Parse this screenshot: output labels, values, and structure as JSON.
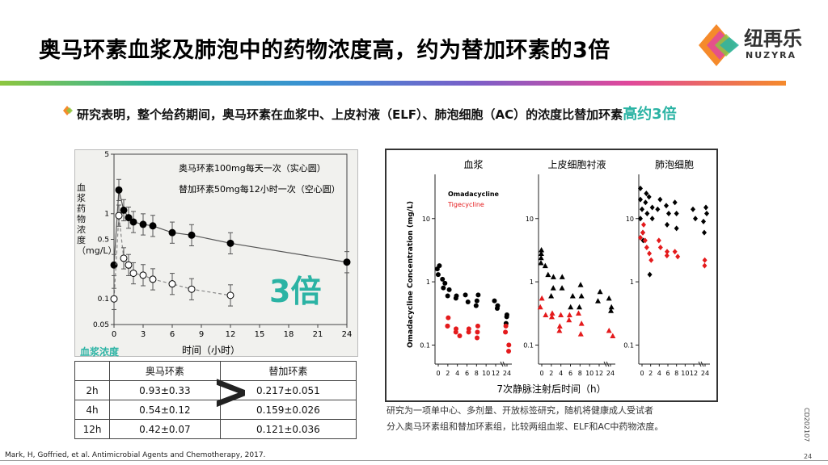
{
  "title": "奥马环素血浆及肺泡中的药物浓度高，约为替加环素的3倍",
  "logo": {
    "cn": "纽再乐",
    "en": "NUZYRA"
  },
  "statement": {
    "text": "研究表明，整个给药期间，奥马环素在血浆中、上皮衬液（ELF）、肺泡细胞（AC）的浓度比替加环素",
    "highlight": "高约3倍"
  },
  "left_chart": {
    "legend_solid": "奥马环素100mg每天一次（实心圆）",
    "legend_open": "替加环素50mg每12小时一次（空心圆）",
    "ylabel": "血浆药物浓度（mg/L）",
    "xlabel": "时间（小时）",
    "caption": "血浆浓度",
    "big_label": "3倍",
    "xticks": [
      "0",
      "3",
      "6",
      "9",
      "12",
      "15",
      "18",
      "21",
      "24"
    ],
    "yticks": [
      "5",
      "1",
      "0.5",
      "0.1",
      "0.05"
    ]
  },
  "table": {
    "headers": [
      "",
      "奥马环素",
      "替加环素"
    ],
    "rows": [
      [
        "2h",
        "0.93±0.33",
        "0.217±0.051"
      ],
      [
        "4h",
        "0.54±0.12",
        "0.159±0.026"
      ],
      [
        "12h",
        "0.42±0.07",
        "0.121±0.036"
      ]
    ],
    "symbol": ">"
  },
  "right_chart": {
    "panels": [
      "血浆",
      "上皮细胞衬液",
      "肺泡细胞"
    ],
    "ylabel": "Omadacycline Concentration (mg/L)",
    "legend": [
      "Omadacycline",
      "Tigecycline"
    ],
    "xlabel": "7次静脉注射后时间（h）",
    "xticks": [
      "0",
      "2",
      "4",
      "6",
      "8",
      "10",
      "12",
      "24"
    ],
    "yticks": [
      "10",
      "1",
      "0.1"
    ]
  },
  "chart_data": [
    {
      "type": "line",
      "x": [
        0,
        0.5,
        1,
        1.5,
        2,
        3,
        4,
        6,
        8,
        12,
        24
      ],
      "series": [
        {
          "name": "奥马环素100mg每天一次（实心圆）",
          "values": [
            0.25,
            1.9,
            1.1,
            0.9,
            0.8,
            0.75,
            0.72,
            0.6,
            0.56,
            0.45,
            0.27
          ]
        },
        {
          "name": "替加环素50mg每12小时一次（空心圆）",
          "values": [
            0.1,
            0.95,
            0.3,
            0.25,
            0.2,
            0.19,
            0.17,
            0.15,
            0.13,
            0.11,
            null
          ]
        }
      ],
      "ylim": [
        0.05,
        5
      ],
      "xlim": [
        0,
        24
      ],
      "ylog": true,
      "xlabel": "时间（小时）",
      "ylabel": "血浆药物浓度（mg/L）"
    },
    {
      "type": "scatter",
      "ylog": true,
      "ylim": [
        0.05,
        50
      ],
      "panels": [
        {
          "name": "血浆",
          "omadacycline": [
            [
              0,
              1.8
            ],
            [
              0,
              1.6
            ],
            [
              0,
              1.3
            ],
            [
              1,
              1.1
            ],
            [
              1,
              0.95
            ],
            [
              1,
              0.8
            ],
            [
              2,
              0.75
            ],
            [
              2,
              0.6
            ],
            [
              4,
              0.6
            ],
            [
              4,
              0.55
            ],
            [
              6,
              0.62
            ],
            [
              6,
              0.48
            ],
            [
              8,
              0.62
            ],
            [
              8,
              0.5
            ],
            [
              8,
              0.42
            ],
            [
              12,
              0.5
            ],
            [
              12,
              0.42
            ],
            [
              12,
              0.38
            ],
            [
              24,
              0.3
            ],
            [
              24,
              0.28
            ],
            [
              24,
              0.22
            ]
          ],
          "tigecycline": [
            [
              2,
              0.27
            ],
            [
              2,
              0.2
            ],
            [
              2,
              0.2
            ],
            [
              4,
              0.18
            ],
            [
              4,
              0.16
            ],
            [
              4,
              0.14
            ],
            [
              6,
              0.18
            ],
            [
              6,
              0.16
            ],
            [
              8,
              0.2
            ],
            [
              8,
              0.16
            ],
            [
              8,
              0.13
            ],
            [
              24,
              0.2
            ],
            [
              24,
              0.16
            ],
            [
              24,
              0.1
            ],
            [
              24,
              0.08
            ]
          ]
        },
        {
          "name": "上皮细胞衬液",
          "omadacycline": [
            [
              0,
              3.2
            ],
            [
              0,
              2.8
            ],
            [
              0,
              2.4
            ],
            [
              0,
              2
            ],
            [
              1,
              1.8
            ],
            [
              1,
              1.3
            ],
            [
              2,
              1.2
            ],
            [
              2,
              0.8
            ],
            [
              2,
              0.6
            ],
            [
              4,
              1.2
            ],
            [
              4,
              0.8
            ],
            [
              6,
              0.6
            ],
            [
              6,
              0.4
            ],
            [
              8,
              0.9
            ],
            [
              8,
              0.6
            ],
            [
              8,
              0.4
            ],
            [
              12,
              0.7
            ],
            [
              12,
              0.5
            ],
            [
              24,
              0.55
            ],
            [
              24,
              0.4
            ],
            [
              24,
              0.35
            ]
          ],
          "tigecycline": [
            [
              0,
              0.55
            ],
            [
              0,
              0.4
            ],
            [
              1,
              0.3
            ],
            [
              2,
              0.32
            ],
            [
              2,
              0.28
            ],
            [
              4,
              0.3
            ],
            [
              4,
              0.2
            ],
            [
              4,
              0.17
            ],
            [
              6,
              0.3
            ],
            [
              6,
              0.25
            ],
            [
              8,
              0.32
            ],
            [
              8,
              0.22
            ],
            [
              8,
              0.15
            ],
            [
              24,
              0.17
            ],
            [
              24,
              0.14
            ]
          ]
        },
        {
          "name": "肺泡细胞",
          "omadacycline": [
            [
              0,
              30
            ],
            [
              0,
              20
            ],
            [
              0,
              14
            ],
            [
              0,
              10
            ],
            [
              0,
              6
            ],
            [
              0,
              4.5
            ],
            [
              1,
              25
            ],
            [
              1,
              18
            ],
            [
              1,
              12
            ],
            [
              2,
              22
            ],
            [
              2,
              15
            ],
            [
              2,
              10
            ],
            [
              4,
              20
            ],
            [
              4,
              14
            ],
            [
              6,
              16
            ],
            [
              6,
              12
            ],
            [
              6,
              8
            ],
            [
              8,
              18
            ],
            [
              8,
              12
            ],
            [
              8,
              7
            ],
            [
              12,
              14
            ],
            [
              12,
              10
            ],
            [
              24,
              15
            ],
            [
              24,
              12
            ],
            [
              24,
              9
            ],
            [
              24,
              6
            ],
            [
              2,
              1.3
            ]
          ],
          "tigecycline": [
            [
              0,
              8
            ],
            [
              0,
              6
            ],
            [
              0,
              5
            ],
            [
              1,
              4.5
            ],
            [
              1,
              3.5
            ],
            [
              2,
              2.8
            ],
            [
              2,
              2.2
            ],
            [
              4,
              4.5
            ],
            [
              4,
              3.5
            ],
            [
              6,
              3
            ],
            [
              6,
              2.6
            ],
            [
              8,
              3
            ],
            [
              8,
              2.5
            ],
            [
              24,
              2.2
            ],
            [
              24,
              1.8
            ]
          ]
        }
      ]
    }
  ],
  "colors": {
    "accent": "#2bb3a4",
    "omadacycline": "#000000",
    "tigecycline": "#e41a1c",
    "caption": "#2bb3a4"
  },
  "note": [
    "研究为一项单中心、多剂量、开放标签研究，随机将健康成人受试者",
    "分入奥马环素组和替加环素组，比较两组血浆、ELF和AC中药物浓度。"
  ],
  "footnote": "Mark, H, Goffried, et al. Antimicrobial Agents and Chemotherapy, 2017.",
  "page_number": "24",
  "doc_code": "CD202107"
}
